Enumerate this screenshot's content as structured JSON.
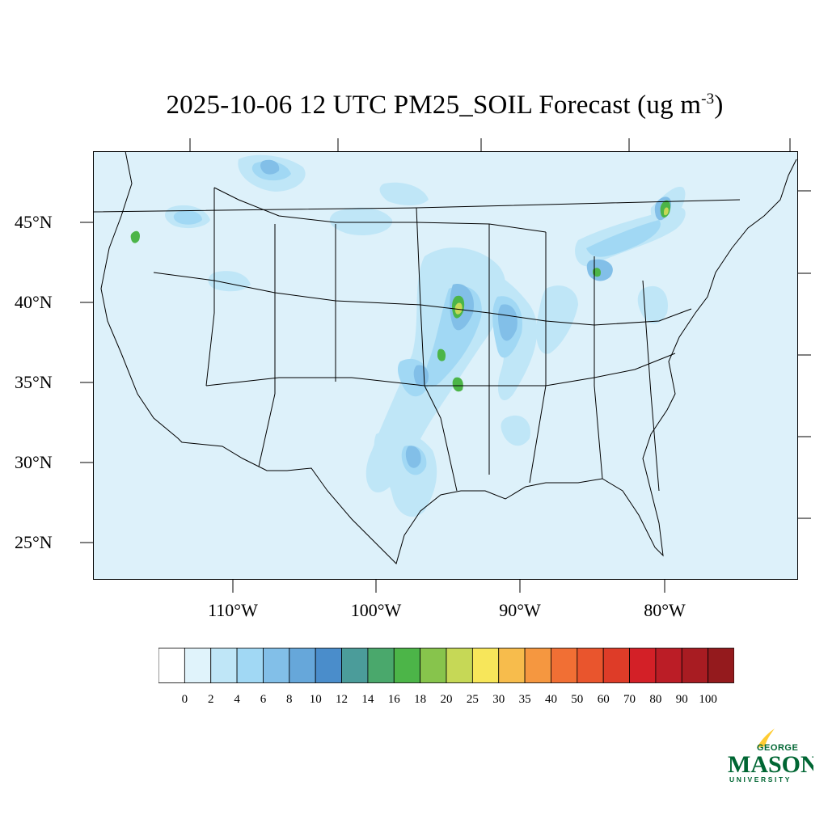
{
  "title": {
    "main": "2025-10-06 12 UTC PM25_SOIL Forecast (ug m",
    "exp": "-3",
    "close": ")"
  },
  "axes": {
    "lat_labels": [
      "45°N",
      "40°N",
      "35°N",
      "30°N",
      "25°N"
    ],
    "lon_labels": [
      "110°W",
      "100°W",
      "90°W",
      "80°W"
    ]
  },
  "colorbar": {
    "levels": [
      "0",
      "2",
      "4",
      "6",
      "8",
      "10",
      "12",
      "14",
      "16",
      "18",
      "20",
      "25",
      "30",
      "35",
      "40",
      "50",
      "60",
      "70",
      "80",
      "90",
      "100"
    ],
    "colors": [
      "#ffffff",
      "#e0f3fb",
      "#bfe6f7",
      "#a1d8f4",
      "#82bfe8",
      "#66a7da",
      "#4a8dcb",
      "#4b9c9a",
      "#4aa86c",
      "#4cb548",
      "#87c44c",
      "#c6d856",
      "#f7e65a",
      "#f7bc4c",
      "#f59740",
      "#f16f34",
      "#e9552d",
      "#de3c28",
      "#d32027",
      "#bb1d26",
      "#a81c22",
      "#941a1d"
    ]
  },
  "logo": {
    "top": "GEORGE",
    "middle": "MASON",
    "bottom": "UNIVERSITY",
    "green": "#006633",
    "gold": "#ffcc33"
  },
  "map": {
    "background": "#ddf1fa",
    "fill_light": "#bfe6f7",
    "fill_mid": "#a1d8f4",
    "fill_dark": "#82bfe8",
    "fill_blue": "#66a7da",
    "fill_green": "#4cb548",
    "fill_yellow": "#c6d856"
  }
}
